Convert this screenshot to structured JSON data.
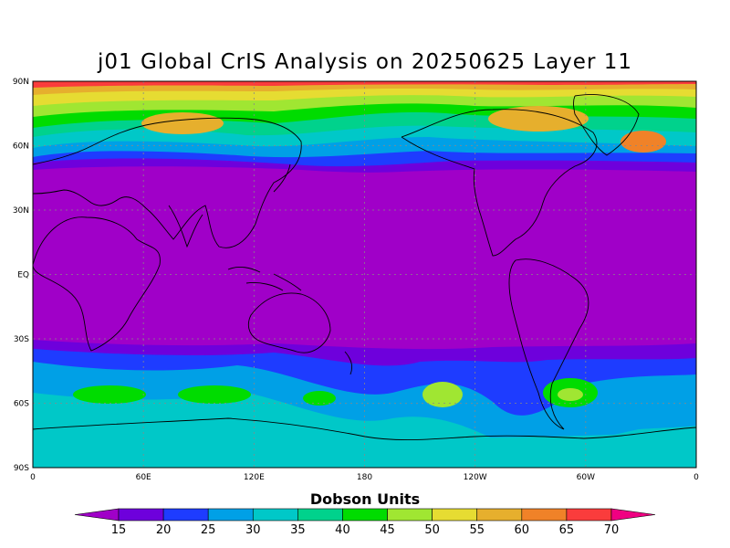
{
  "title": "j01 Global CrIS Analysis on 20250625 Layer 11",
  "map": {
    "lat_labels": [
      "90N",
      "60N",
      "30N",
      "EQ",
      "30S",
      "60S",
      "90S"
    ],
    "lon_labels": [
      "0",
      "60E",
      "120E",
      "180",
      "120W",
      "60W",
      "0"
    ]
  },
  "colorbar": {
    "title": "Dobson Units",
    "ticks": [
      "15",
      "20",
      "25",
      "30",
      "35",
      "40",
      "45",
      "50",
      "55",
      "60",
      "65",
      "70"
    ],
    "colors": [
      "#a000c8",
      "#6e00dc",
      "#1e3cff",
      "#00a0e6",
      "#00c8c8",
      "#00d28c",
      "#00dc00",
      "#a0e632",
      "#e6dc32",
      "#e6af2d",
      "#f08228",
      "#fa3c3c",
      "#f00082"
    ]
  }
}
